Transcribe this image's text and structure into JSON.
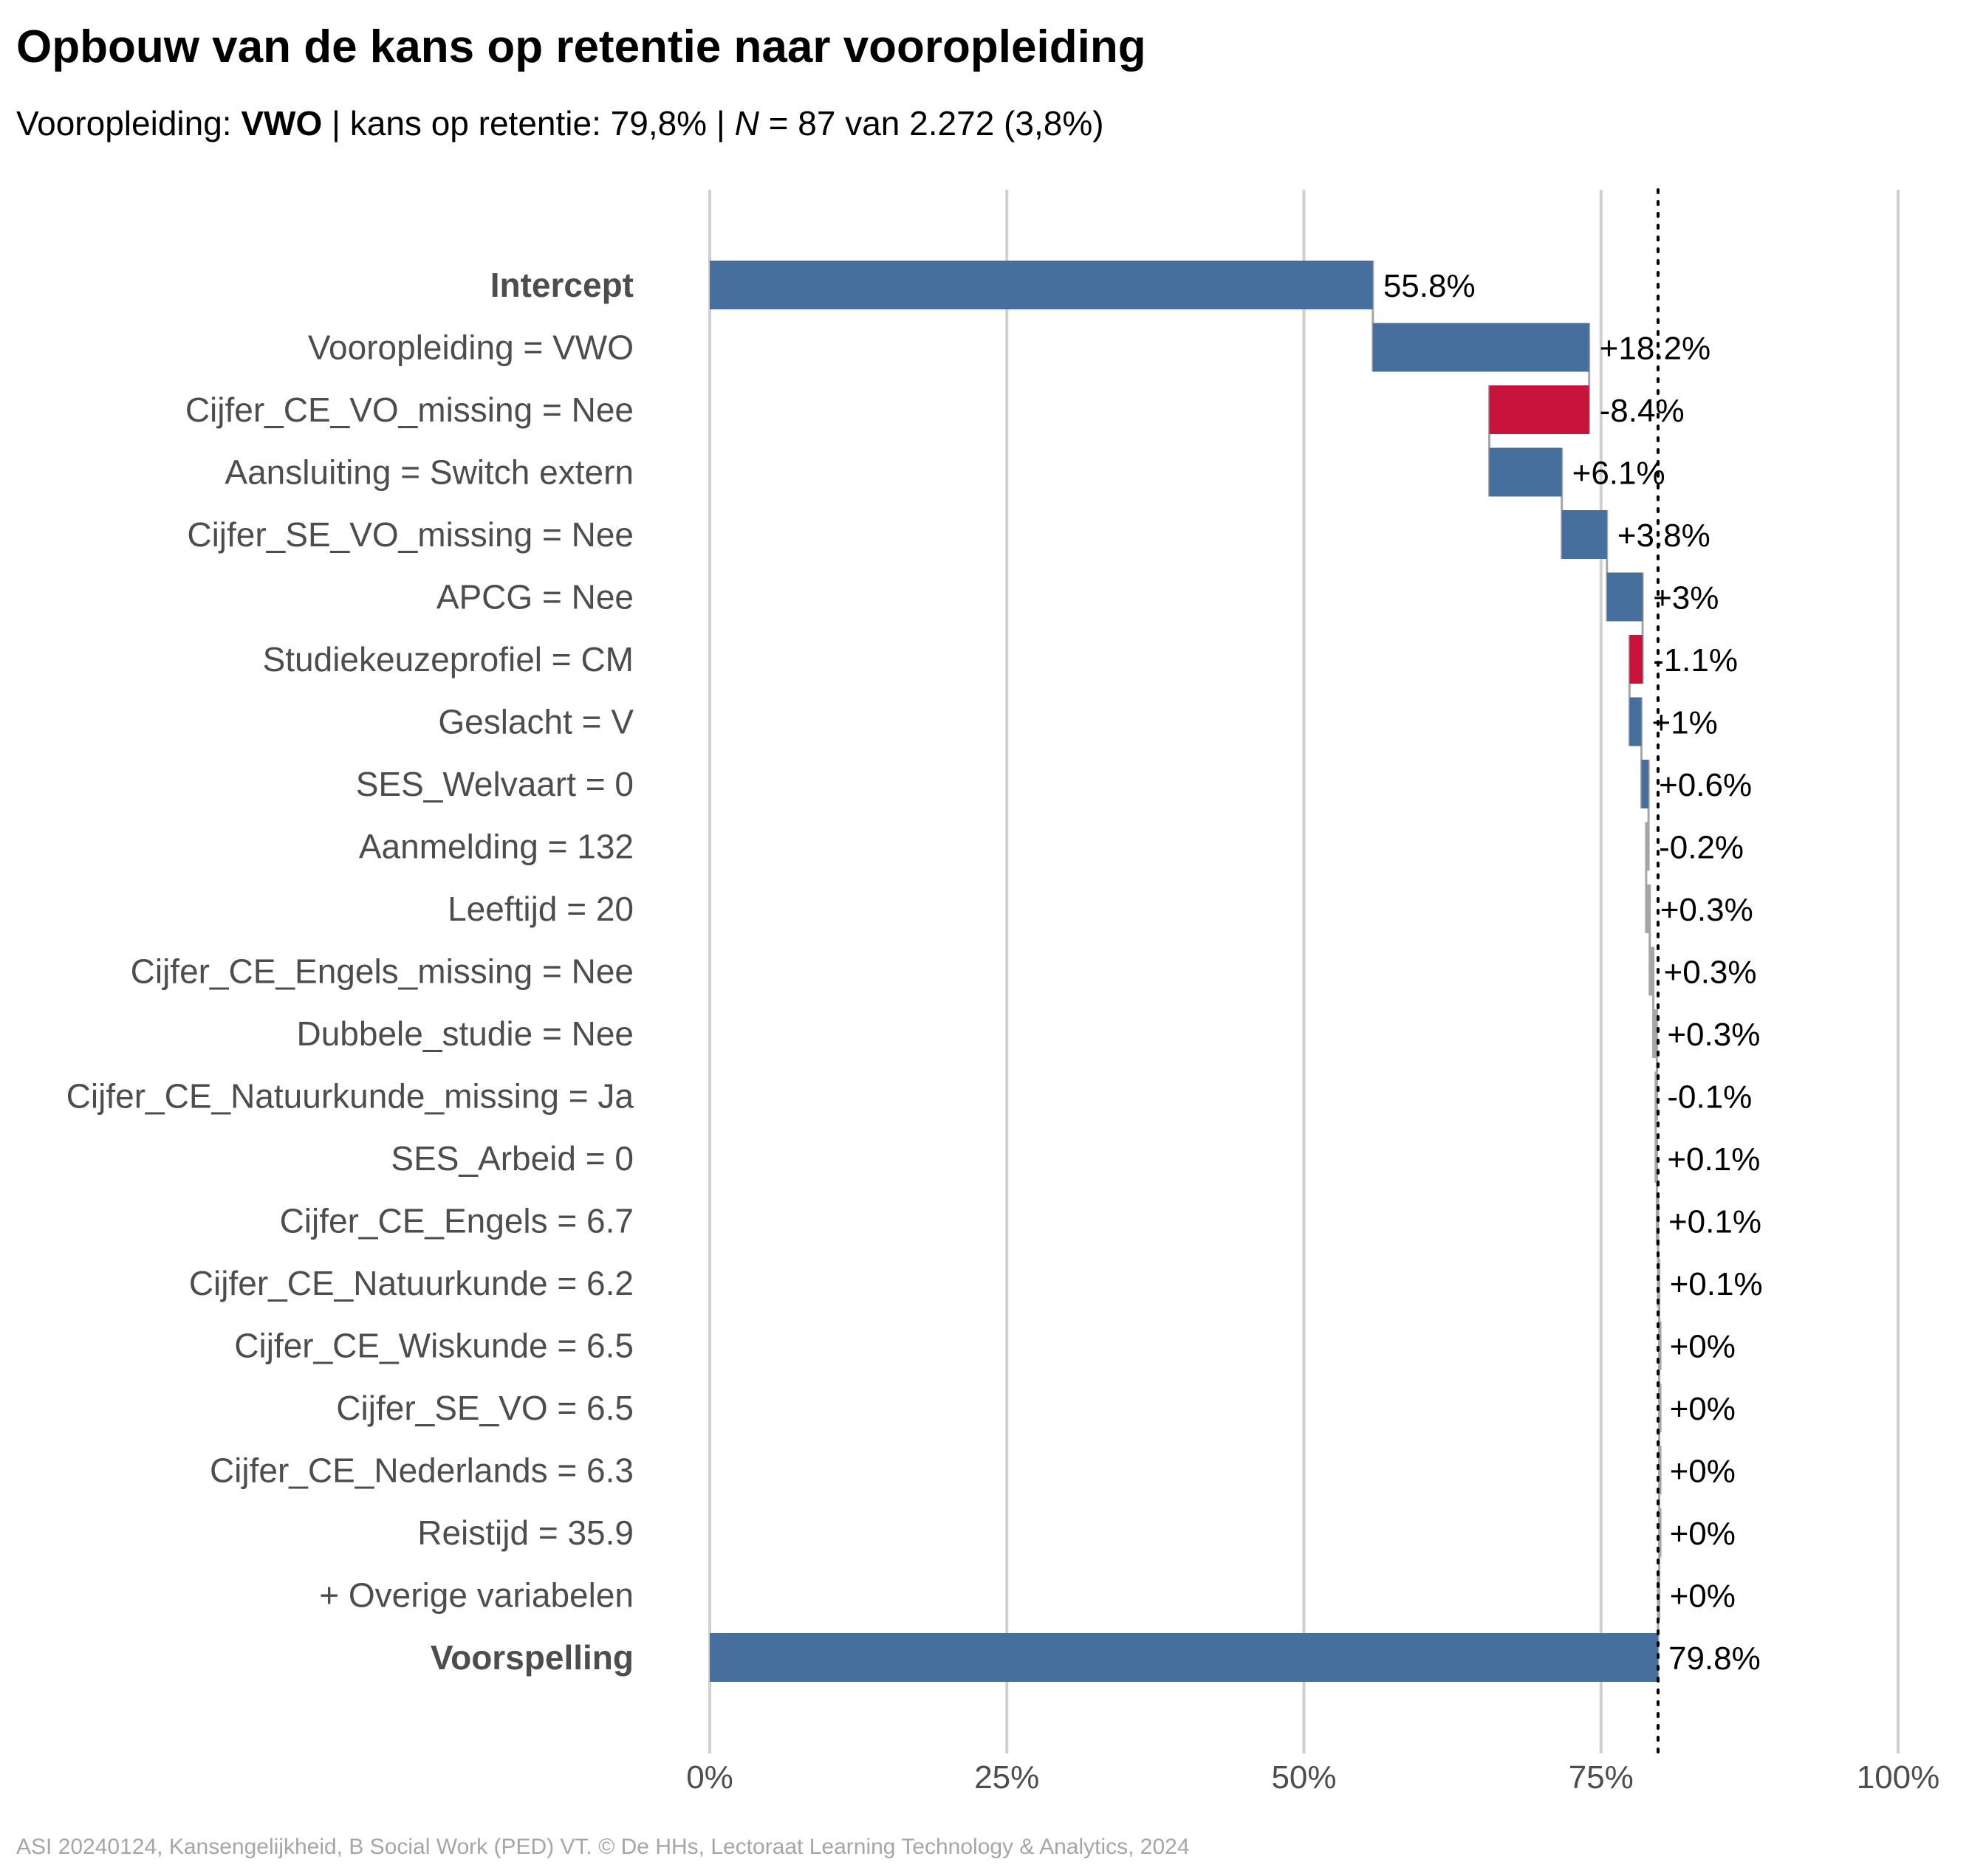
{
  "title": "Opbouw van de kans op retentie naar vooropleiding",
  "subtitle": {
    "label": "Vooropleiding: ",
    "group": "VWO",
    "sep1": " | kans op retentie: ",
    "probability": "79,8%",
    "sep2": " | ",
    "n_symbol": "N",
    "n_text": " = 87 van 2.272 (3,8%)"
  },
  "caption": "ASI 20240124, Kansengelijkheid, B Social Work (PED) VT. © De HHs, Lectoraat Learning Technology & Analytics, 2024",
  "colors": {
    "positive": "#466f9d",
    "negative": "#c8143c",
    "small": "#a6a6a6",
    "grid": "#cfcfcf",
    "label": "#4d4d4d",
    "value": "#000000",
    "reference_line": "#000000"
  },
  "chart_data": {
    "type": "waterfall",
    "title": "Opbouw van de kans op retentie naar vooropleiding",
    "xlim": [
      0,
      100
    ],
    "x_ticks": [
      0,
      25,
      50,
      75,
      100
    ],
    "x_tick_labels": [
      "0%",
      "25%",
      "50%",
      "75%",
      "100%"
    ],
    "grid": "vertical",
    "reference_line": {
      "value": 79.8,
      "style": "dotted"
    },
    "rows": [
      {
        "label": "Intercept",
        "kind": "total",
        "start": 0,
        "end": 55.8,
        "value_label": "55.8%"
      },
      {
        "label": "Vooropleiding = VWO",
        "kind": "positive",
        "start": 55.8,
        "end": 74.0,
        "value_label": "+18.2%"
      },
      {
        "label": "Cijfer_CE_VO_missing = Nee",
        "kind": "negative",
        "start": 74.0,
        "end": 65.6,
        "value_label": "-8.4%"
      },
      {
        "label": "Aansluiting = Switch extern",
        "kind": "positive",
        "start": 65.6,
        "end": 71.7,
        "value_label": "+6.1%"
      },
      {
        "label": "Cijfer_SE_VO_missing = Nee",
        "kind": "positive",
        "start": 71.7,
        "end": 75.5,
        "value_label": "+3.8%"
      },
      {
        "label": "APCG = Nee",
        "kind": "positive",
        "start": 75.5,
        "end": 78.5,
        "value_label": "+3%"
      },
      {
        "label": "Studiekeuzeprofiel = CM",
        "kind": "negative",
        "start": 78.5,
        "end": 77.4,
        "value_label": "-1.1%"
      },
      {
        "label": "Geslacht = V",
        "kind": "positive",
        "start": 77.4,
        "end": 78.4,
        "value_label": "+1%"
      },
      {
        "label": "SES_Welvaart = 0",
        "kind": "positive",
        "start": 78.4,
        "end": 79.0,
        "value_label": "+0.6%"
      },
      {
        "label": "Aanmelding = 132",
        "kind": "small",
        "start": 79.0,
        "end": 78.8,
        "value_label": "-0.2%"
      },
      {
        "label": "Leeftijd = 20",
        "kind": "small",
        "start": 78.8,
        "end": 79.1,
        "value_label": "+0.3%"
      },
      {
        "label": "Cijfer_CE_Engels_missing = Nee",
        "kind": "small",
        "start": 79.1,
        "end": 79.4,
        "value_label": "+0.3%"
      },
      {
        "label": "Dubbele_studie = Nee",
        "kind": "small",
        "start": 79.4,
        "end": 79.7,
        "value_label": "+0.3%"
      },
      {
        "label": "Cijfer_CE_Natuurkunde_missing = Ja",
        "kind": "small",
        "start": 79.7,
        "end": 79.6,
        "value_label": "-0.1%"
      },
      {
        "label": "SES_Arbeid = 0",
        "kind": "small",
        "start": 79.6,
        "end": 79.7,
        "value_label": "+0.1%"
      },
      {
        "label": "Cijfer_CE_Engels = 6.7",
        "kind": "small",
        "start": 79.7,
        "end": 79.8,
        "value_label": "+0.1%"
      },
      {
        "label": "Cijfer_CE_Natuurkunde = 6.2",
        "kind": "small",
        "start": 79.8,
        "end": 79.9,
        "value_label": "+0.1%"
      },
      {
        "label": "Cijfer_CE_Wiskunde = 6.5",
        "kind": "small",
        "start": 79.9,
        "end": 79.9,
        "value_label": "+0%"
      },
      {
        "label": "Cijfer_SE_VO = 6.5",
        "kind": "small",
        "start": 79.9,
        "end": 79.9,
        "value_label": "+0%"
      },
      {
        "label": "Cijfer_CE_Nederlands = 6.3",
        "kind": "small",
        "start": 79.9,
        "end": 79.9,
        "value_label": "+0%"
      },
      {
        "label": "Reistijd = 35.9",
        "kind": "small",
        "start": 79.9,
        "end": 79.9,
        "value_label": "+0%"
      },
      {
        "label": "+ Overige variabelen",
        "kind": "small",
        "start": 79.9,
        "end": 79.8,
        "value_label": "+0%"
      },
      {
        "label": "Voorspelling",
        "kind": "total",
        "start": 0,
        "end": 79.8,
        "value_label": "79.8%"
      }
    ]
  }
}
